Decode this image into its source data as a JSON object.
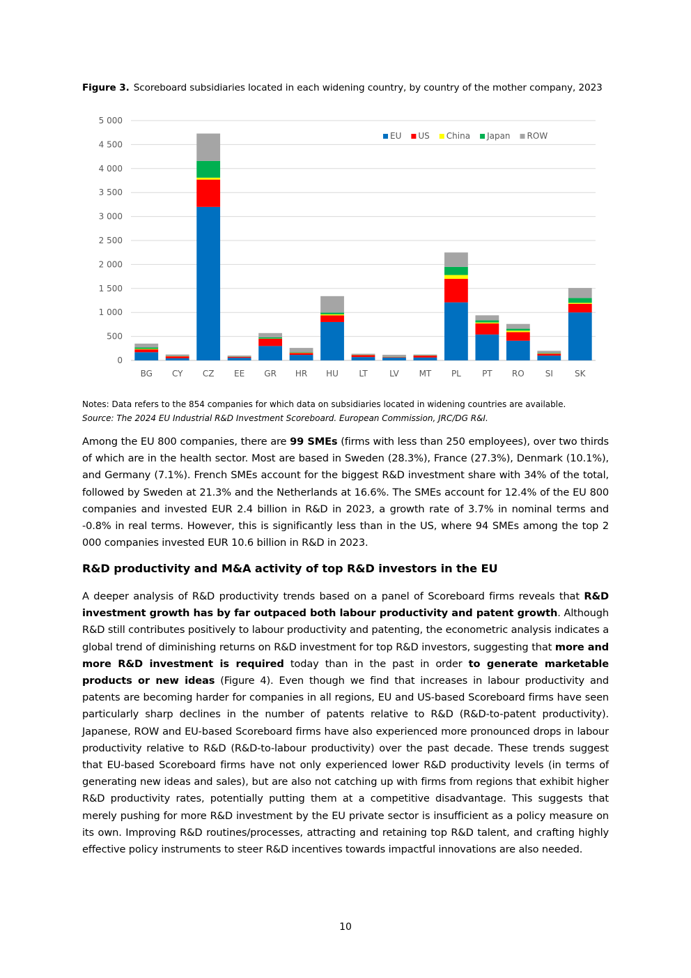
{
  "figure": {
    "label": "Figure 3.",
    "caption": "Scoreboard subsidiaries located in each widening country, by country of the mother company, 2023"
  },
  "chart_data": {
    "type": "bar",
    "stacked": true,
    "categories": [
      "BG",
      "CY",
      "CZ",
      "EE",
      "GR",
      "HR",
      "HU",
      "LT",
      "LV",
      "MT",
      "PL",
      "PT",
      "RO",
      "SI",
      "SK"
    ],
    "series": [
      {
        "name": "EU",
        "color": "#0070C0",
        "values": [
          170,
          45,
          3200,
          55,
          300,
          115,
          800,
          70,
          60,
          60,
          1210,
          540,
          410,
          100,
          1000
        ]
      },
      {
        "name": "US",
        "color": "#FF0000",
        "values": [
          60,
          40,
          570,
          20,
          150,
          40,
          140,
          40,
          10,
          40,
          490,
          230,
          180,
          40,
          180
        ]
      },
      {
        "name": "China",
        "color": "#FFFF00",
        "values": [
          10,
          3,
          40,
          2,
          5,
          5,
          20,
          3,
          2,
          2,
          80,
          20,
          30,
          5,
          20
        ]
      },
      {
        "name": "Japan",
        "color": "#00B050",
        "values": [
          30,
          5,
          350,
          5,
          25,
          10,
          35,
          5,
          5,
          5,
          170,
          45,
          40,
          10,
          100
        ]
      },
      {
        "name": "ROW",
        "color": "#A5A5A5",
        "values": [
          80,
          30,
          570,
          20,
          90,
          90,
          345,
          20,
          40,
          15,
          300,
          105,
          100,
          45,
          210
        ]
      }
    ],
    "yticks": [
      "0",
      "500",
      "1 000",
      "1 500",
      "2 000",
      "2 500",
      "3 000",
      "3 500",
      "4 000",
      "4 500",
      "5 000"
    ],
    "ylim": [
      0,
      5000
    ],
    "grid": true,
    "legend_position": "top-right"
  },
  "notes": {
    "note": "Notes: Data refers to the 854 companies for which data on subsidiaries located in widening countries are available.",
    "source": "Source: The 2024 EU Industrial R&D Investment Scoreboard. European Commission, JRC/DG R&I."
  },
  "paragraph1": {
    "t1": "Among the EU 800 companies, there are ",
    "b1": "99 SMEs",
    "t2": " (firms with less than 250 employees), over two thirds of which are in the health sector. Most are based in Sweden (28.3%), France (27.3%), Denmark (10.1%), and Germany (7.1%). French SMEs account for the biggest R&D investment share with 34% of the total, followed by Sweden at 21.3% and the Netherlands at 16.6%. The SMEs account for 12.4% of the EU 800 companies and invested EUR 2.4 billion in R&D in 2023, a growth rate of 3.7% in nominal terms and -0.8% in real terms. However, this is significantly less than in the US, where 94 SMEs among the top 2 000 companies invested EUR 10.6 billion in R&D in 2023."
  },
  "heading": "R&D productivity and M&A activity of top R&D investors in the EU",
  "paragraph2": {
    "t1": "A deeper analysis of R&D productivity trends based on a panel of Scoreboard firms reveals that ",
    "b1": "R&D investment growth has by far outpaced both labour productivity and patent growth",
    "t2": ". Although R&D still contributes positively to labour productivity and patenting, the econometric analysis indicates a global trend of diminishing returns on R&D investment for top R&D investors, suggesting that ",
    "b2": "more and more R&D investment is required",
    "t3": " today than in the past in order ",
    "b3": "to generate marketable products or new ideas",
    "t4": " (Figure 4). Even though we find that increases in labour productivity and patents are becoming harder for companies in all regions, EU and US-based Scoreboard firms have seen particularly sharp declines in the number of patents relative to R&D (R&D-to-patent productivity). Japanese, ROW and EU-based Scoreboard firms have also experienced more pronounced drops in labour productivity relative to R&D (R&D-to-labour productivity) over the past decade. These trends suggest that EU-based Scoreboard firms have not only experienced lower R&D productivity levels (in terms of generating new ideas and sales), but are also not catching up with firms from regions that exhibit higher R&D productivity rates, potentially putting them at a competitive disadvantage. This suggests that merely pushing for more R&D investment by the EU private sector is insufficient as a policy measure on its own. Improving R&D routines/processes, attracting and retaining top R&D talent, and crafting highly effective policy instruments to steer R&D incentives towards impactful innovations are also needed."
  },
  "page_number": "10"
}
